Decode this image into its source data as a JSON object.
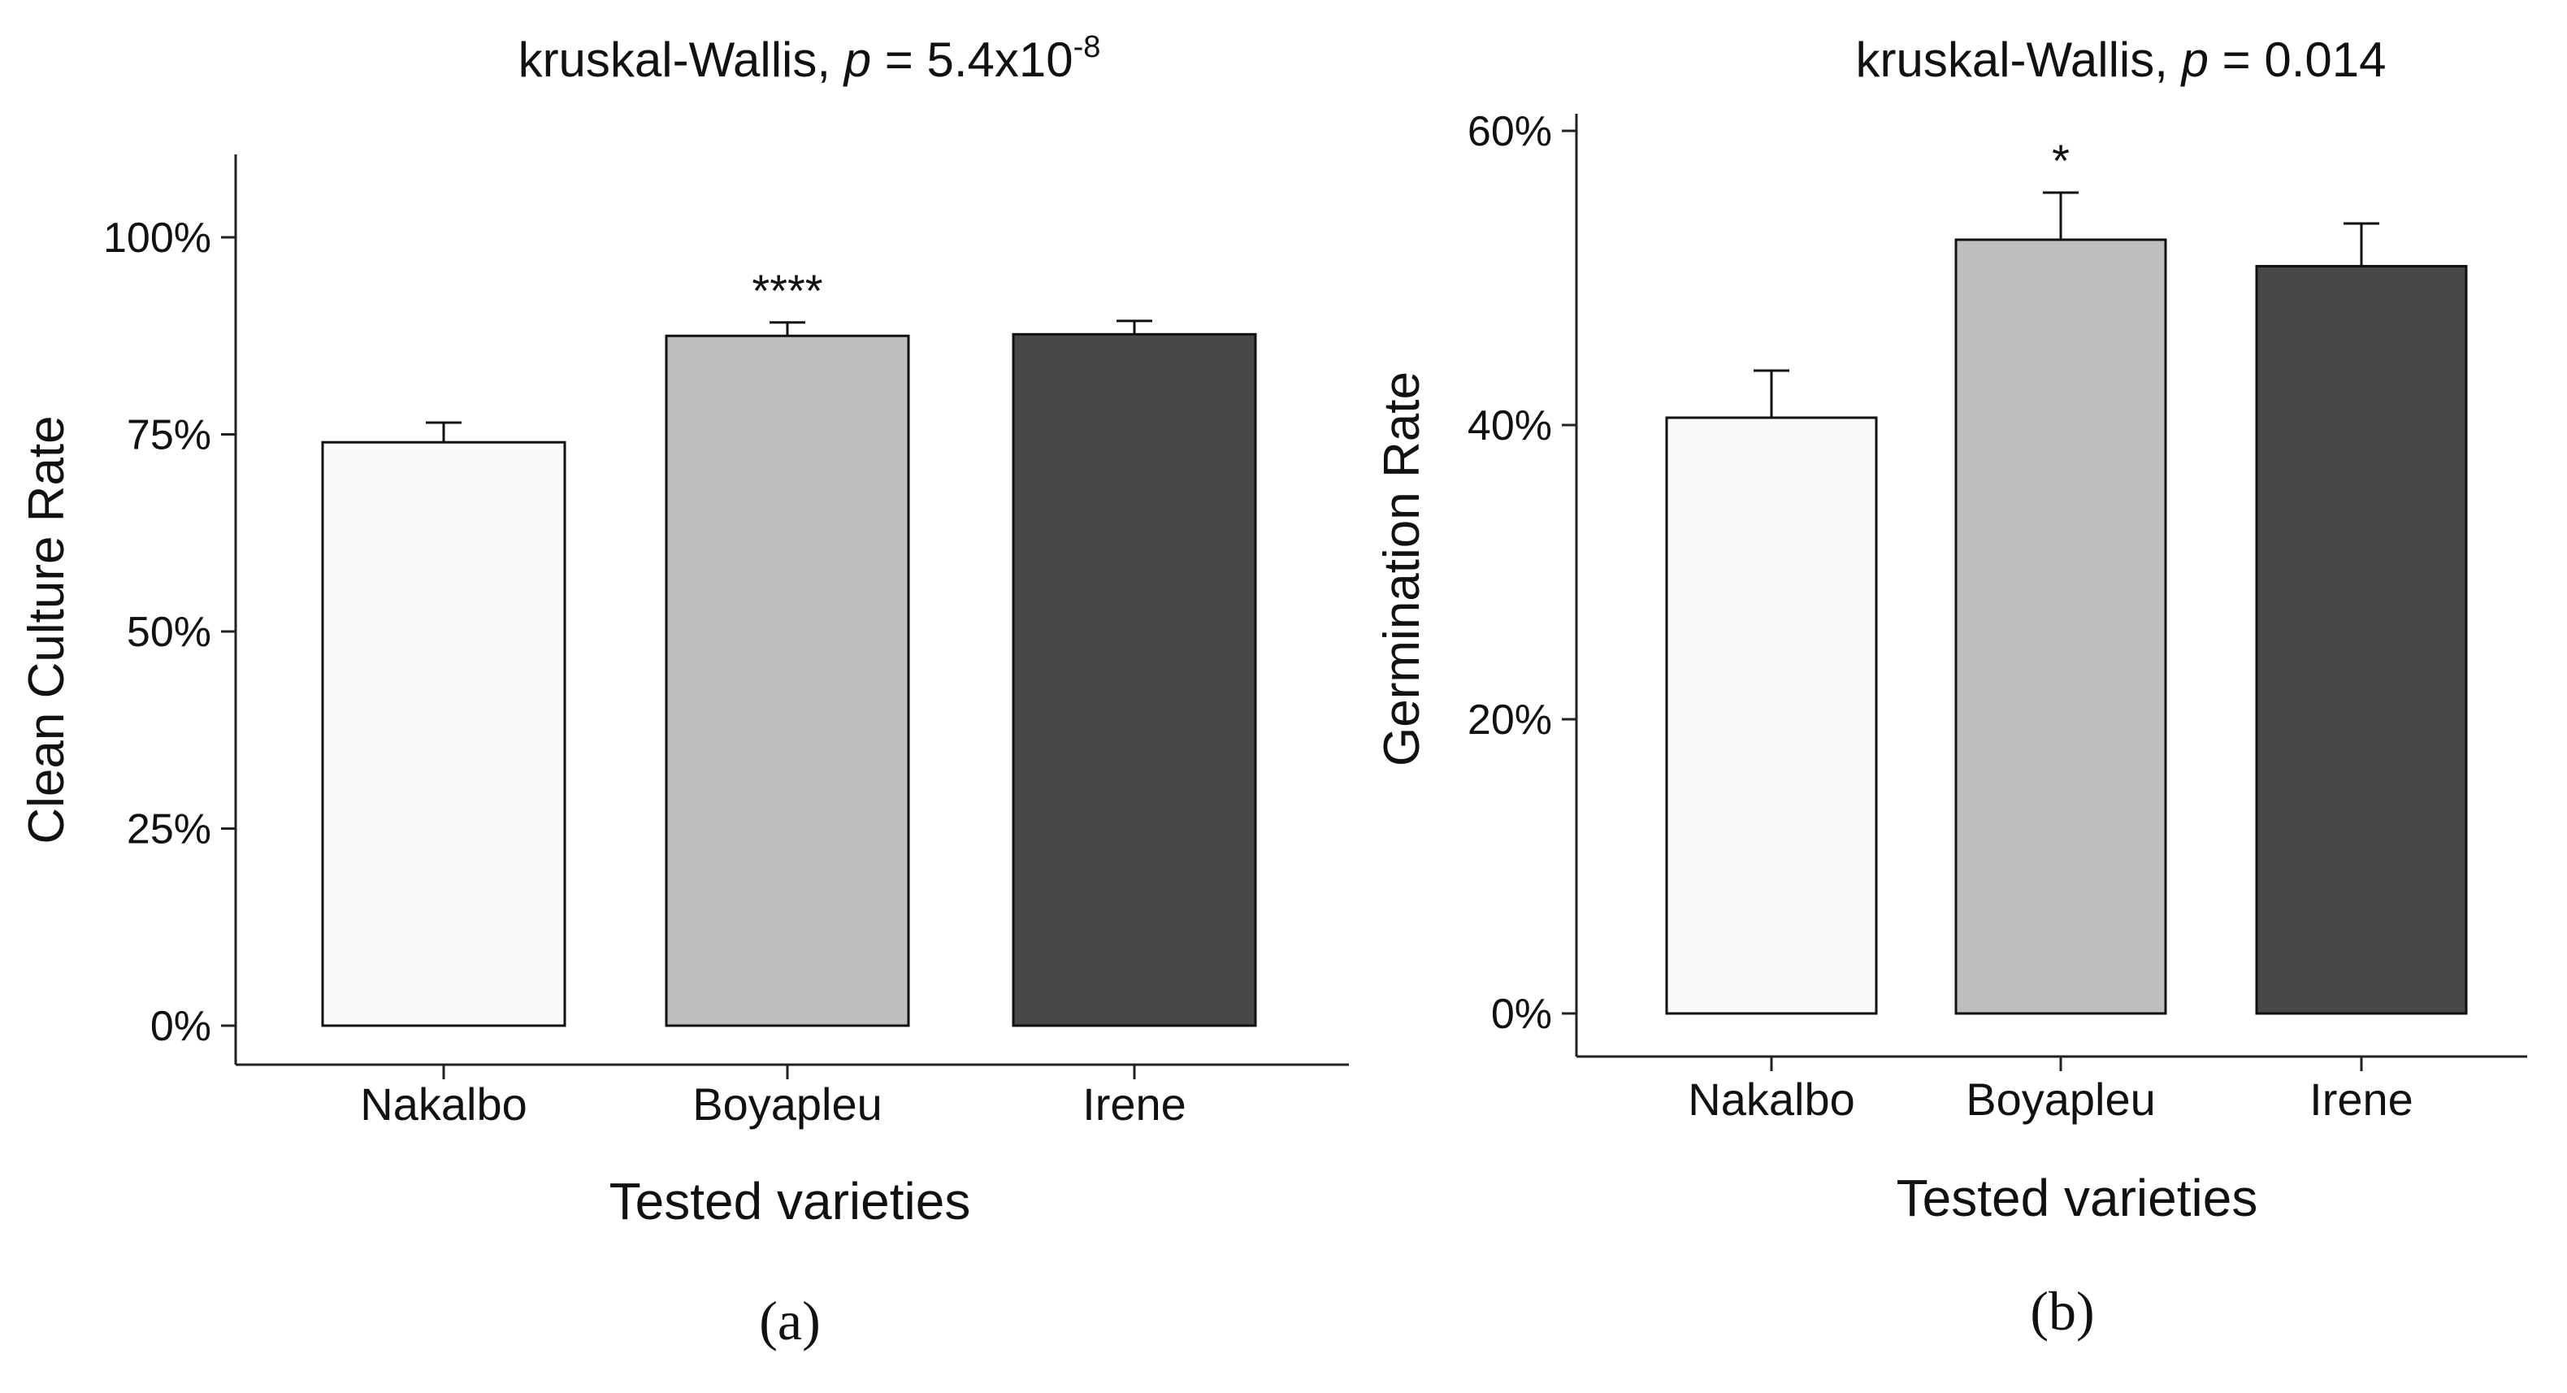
{
  "figure": {
    "panels": [
      "(a)",
      "(b)"
    ]
  },
  "chart_data": [
    {
      "type": "bar",
      "panel_label": "(a)",
      "title_prefix": "kruskal-Wallis, ",
      "title_italic": "p",
      "title_value": " = 5.4x10",
      "title_superscript": "-8",
      "xlabel": "Tested varieties",
      "ylabel": "Clean Culture Rate",
      "categories": [
        "Nakalbo",
        "Boyapleu",
        "Irene"
      ],
      "values": [
        0.74,
        0.875,
        0.877
      ],
      "error_upper": [
        0.765,
        0.892,
        0.894
      ],
      "significance": [
        "",
        "****",
        ""
      ],
      "bar_colors": [
        "#fafafa",
        "#bebebe",
        "#484848"
      ],
      "ylim": [
        0,
        1.05
      ],
      "yticks": [
        0,
        0.25,
        0.5,
        0.75,
        1.0
      ],
      "ytick_labels": [
        "0%",
        "25%",
        "50%",
        "75%",
        "100%"
      ],
      "grid": false,
      "legend": "none"
    },
    {
      "type": "bar",
      "panel_label": "(b)",
      "title_prefix": "kruskal-Wallis, ",
      "title_italic": "p",
      "title_value": " = 0.014",
      "title_superscript": "",
      "xlabel": "Tested varieties",
      "ylabel": "Germination Rate",
      "categories": [
        "Nakalbo",
        "Boyapleu",
        "Irene"
      ],
      "values": [
        0.405,
        0.526,
        0.508
      ],
      "error_upper": [
        0.437,
        0.558,
        0.537
      ],
      "significance": [
        "",
        "*",
        ""
      ],
      "bar_colors": [
        "#fafafa",
        "#bebebe",
        "#484848"
      ],
      "ylim": [
        0,
        0.6
      ],
      "yticks": [
        0,
        0.2,
        0.4,
        0.6
      ],
      "ytick_labels": [
        "0%",
        "20%",
        "40%",
        "60%"
      ],
      "grid": false,
      "legend": "none"
    }
  ]
}
